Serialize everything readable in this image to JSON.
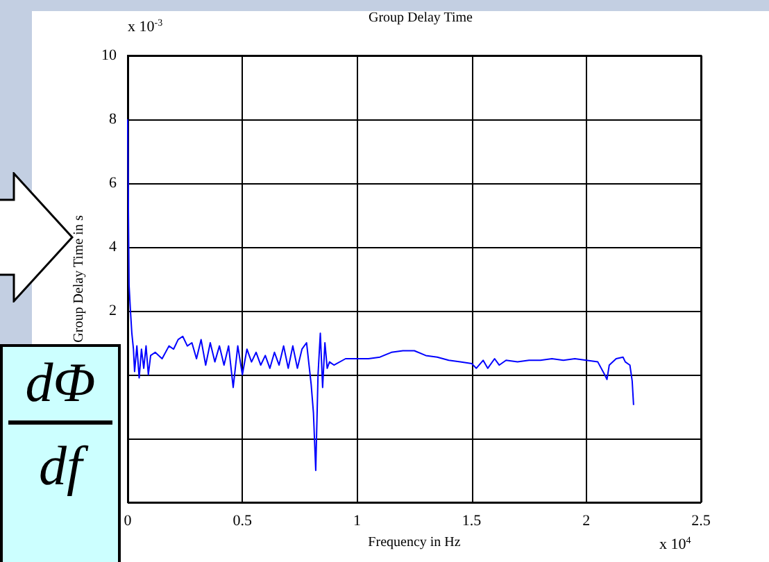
{
  "chart_data": {
    "type": "line",
    "title": "Group Delay Time",
    "xlabel": "Frequency in Hz",
    "ylabel": "Group Delay Time in s",
    "annotations": [
      "x 10$^{-3}$",
      "x 10$^{4}$",
      "dΦ",
      "df"
    ],
    "series": [
      {
        "color": "#0000ff",
        "x": [
          0,
          0.003,
          0.006,
          0.012,
          0.018,
          0.025,
          0.03,
          0.04,
          0.05,
          0.06,
          0.07,
          0.08,
          0.09,
          0.1,
          0.12,
          0.15,
          0.18,
          0.2,
          0.22,
          0.24,
          0.26,
          0.28,
          0.3,
          0.32,
          0.34,
          0.36,
          0.38,
          0.4,
          0.42,
          0.44,
          0.46,
          0.48,
          0.5,
          0.52,
          0.54,
          0.56,
          0.58,
          0.6,
          0.62,
          0.64,
          0.66,
          0.68,
          0.7,
          0.72,
          0.74,
          0.76,
          0.78,
          0.8,
          0.81,
          0.82,
          0.83,
          0.84,
          0.85,
          0.86,
          0.87,
          0.88,
          0.9,
          0.95,
          1.0,
          1.05,
          1.1,
          1.15,
          1.2,
          1.25,
          1.3,
          1.35,
          1.4,
          1.45,
          1.5,
          1.52,
          1.55,
          1.57,
          1.6,
          1.62,
          1.65,
          1.7,
          1.75,
          1.8,
          1.85,
          1.9,
          1.95,
          2.0,
          2.05,
          2.08,
          2.09,
          2.1,
          2.13,
          2.16,
          2.17,
          2.19,
          2.2,
          2.206
        ],
        "values": [
          8.0,
          5.2,
          2.8,
          2.0,
          1.3,
          0.8,
          0.1,
          0.9,
          -0.1,
          0.8,
          0.2,
          0.9,
          0.0,
          0.6,
          0.7,
          0.5,
          0.9,
          0.8,
          1.1,
          1.2,
          0.9,
          1.0,
          0.5,
          1.1,
          0.3,
          1.0,
          0.4,
          0.9,
          0.3,
          0.9,
          -0.4,
          0.9,
          0.0,
          0.8,
          0.4,
          0.7,
          0.3,
          0.6,
          0.2,
          0.7,
          0.3,
          0.9,
          0.2,
          0.9,
          0.2,
          0.8,
          1.0,
          -0.3,
          -1.2,
          -3.0,
          0.0,
          1.3,
          -0.4,
          1.0,
          0.2,
          0.4,
          0.3,
          0.5,
          0.5,
          0.5,
          0.55,
          0.7,
          0.75,
          0.75,
          0.6,
          0.55,
          0.45,
          0.4,
          0.35,
          0.2,
          0.45,
          0.2,
          0.5,
          0.3,
          0.45,
          0.4,
          0.45,
          0.45,
          0.5,
          0.45,
          0.5,
          0.45,
          0.4,
          0.0,
          -0.15,
          0.3,
          0.5,
          0.55,
          0.4,
          0.3,
          -0.2,
          -0.95
        ]
      }
    ],
    "xlim": [
      0,
      2.5
    ],
    "xticks": [
      0,
      0.5,
      1,
      1.5,
      2,
      2.5
    ],
    "ylim": [
      -4,
      10
    ],
    "yticks": [
      {
        "value": -4,
        "label": null
      },
      {
        "value": -2,
        "label": null
      },
      {
        "value": 0,
        "label": null
      },
      2,
      4,
      6,
      8,
      10
    ],
    "grid": true,
    "marker": "none",
    "line_style": "solid"
  }
}
